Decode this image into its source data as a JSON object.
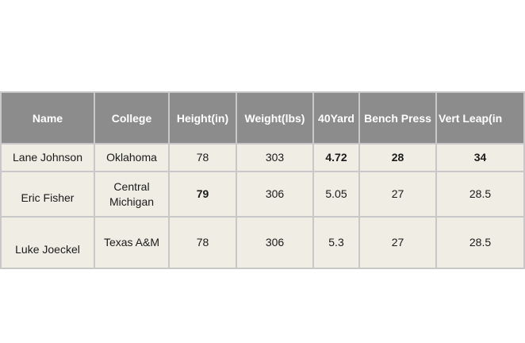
{
  "table": {
    "columns": [
      "Name",
      "College",
      "Height(in)",
      "Weight(lbs)",
      "40Yard",
      "Bench Press",
      "Vert Leap(in"
    ],
    "rows": [
      {
        "name": "Lane Johnson",
        "college": "Oklahoma",
        "height": "78",
        "weight": "303",
        "forty": "4.72",
        "bench": "28",
        "vert": "34"
      },
      {
        "name": "Eric Fisher",
        "college_line1": "Central",
        "college_line2": "Michigan",
        "height": "79",
        "weight": "306",
        "forty": "5.05",
        "bench": "27",
        "vert": "28.5"
      },
      {
        "name": "Luke Joeckel",
        "college": "Texas A&M",
        "height": "78",
        "weight": "306",
        "forty": "5.3",
        "bench": "27",
        "vert": "28.5"
      }
    ],
    "bold_cells": [
      "rows.0.forty",
      "rows.0.bench",
      "rows.0.vert",
      "rows.1.height"
    ],
    "colors": {
      "header_bg": "#8c8c8c",
      "header_text": "#ffffff",
      "cell_bg": "#efede4",
      "border": "#c8c8c8"
    }
  }
}
